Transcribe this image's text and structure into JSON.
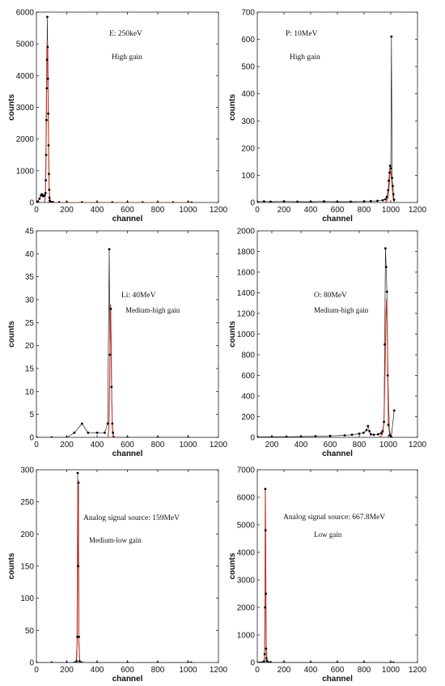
{
  "chart_data": [
    {
      "type": "scatter",
      "xlabel": "channel",
      "ylabel": "counts",
      "xlim": [
        0,
        1200
      ],
      "ylim": [
        0,
        6000
      ],
      "xticks": [
        0,
        200,
        400,
        600,
        800,
        1000,
        1200
      ],
      "yticks": [
        0,
        1000,
        2000,
        3000,
        4000,
        5000,
        6000
      ],
      "annotations": [
        "E: 250keV",
        "High gain"
      ],
      "fit_color": "#c0392b",
      "series": [
        {
          "kind": "points",
          "x": [
            0,
            10,
            20,
            30,
            35,
            40,
            45,
            50,
            55,
            60,
            62,
            64,
            66,
            68,
            70,
            72,
            74,
            76,
            78,
            80,
            82,
            84,
            86,
            88,
            90,
            95,
            100,
            110,
            150,
            200,
            300,
            400,
            500,
            600,
            700,
            800,
            900,
            1000,
            1023
          ],
          "y": [
            0,
            30,
            120,
            220,
            260,
            240,
            200,
            210,
            230,
            300,
            700,
            1500,
            2600,
            3600,
            4500,
            5850,
            4900,
            3900,
            2800,
            1800,
            900,
            400,
            150,
            60,
            30,
            15,
            10,
            8,
            5,
            4,
            4,
            3,
            3,
            3,
            2,
            2,
            2,
            2,
            1
          ]
        },
        {
          "kind": "fit",
          "x": [
            50,
            56,
            60,
            63,
            66,
            69,
            72,
            75,
            78,
            81,
            84,
            88,
            94,
            110,
            1020
          ],
          "y": [
            0,
            50,
            400,
            1500,
            3300,
            4800,
            5100,
            4700,
            3200,
            1500,
            500,
            120,
            10,
            0,
            0
          ]
        }
      ]
    },
    {
      "type": "scatter",
      "xlabel": "channel",
      "ylabel": "counts",
      "xlim": [
        0,
        1200
      ],
      "ylim": [
        0,
        700
      ],
      "xticks": [
        0,
        200,
        400,
        600,
        800,
        1000,
        1200
      ],
      "yticks": [
        0,
        100,
        200,
        300,
        400,
        500,
        600,
        700
      ],
      "annotations": [
        "P: 10MeV",
        "High gain"
      ],
      "fit_color": "#c0392b",
      "series": [
        {
          "kind": "points",
          "x": [
            0,
            50,
            100,
            200,
            300,
            400,
            500,
            600,
            700,
            800,
            850,
            900,
            940,
            960,
            970,
            980,
            985,
            990,
            995,
            1000,
            1005,
            1010,
            1015,
            1020,
            1025
          ],
          "y": [
            3,
            4,
            3,
            4,
            3,
            3,
            4,
            3,
            3,
            4,
            5,
            6,
            8,
            12,
            20,
            45,
            80,
            110,
            135,
            125,
            610,
            90,
            60,
            30,
            10
          ]
        },
        {
          "kind": "fit",
          "x": [
            960,
            975,
            985,
            992,
            998,
            1003,
            1008,
            1014,
            1020,
            1030
          ],
          "y": [
            0,
            10,
            45,
            95,
            120,
            110,
            75,
            35,
            8,
            0
          ]
        }
      ]
    },
    {
      "type": "scatter",
      "xlabel": "channel",
      "ylabel": "counts",
      "xlim": [
        0,
        1200
      ],
      "ylim": [
        0,
        45
      ],
      "xticks": [
        0,
        200,
        400,
        600,
        800,
        1000,
        1200
      ],
      "yticks": [
        0,
        5,
        10,
        15,
        20,
        25,
        30,
        35,
        40,
        45
      ],
      "annotations": [
        "Li: 40MeV",
        "Medium-high gain"
      ],
      "fit_color": "#c0392b",
      "series": [
        {
          "kind": "points",
          "x": [
            0,
            100,
            200,
            250,
            300,
            340,
            400,
            450,
            470,
            480,
            485,
            490,
            495,
            500,
            505,
            510,
            600,
            800,
            1000
          ],
          "y": [
            0,
            0,
            0,
            1,
            3,
            1,
            1,
            1,
            3,
            41,
            18,
            28,
            11,
            3,
            1,
            0,
            0,
            0,
            0
          ]
        },
        {
          "kind": "fit",
          "x": [
            472,
            478,
            482,
            486,
            489,
            492,
            496,
            500,
            506
          ],
          "y": [
            0,
            2,
            10,
            22,
            29,
            22,
            10,
            2,
            0
          ]
        }
      ]
    },
    {
      "type": "scatter",
      "xlabel": "channel",
      "ylabel": "counts",
      "xlim": [
        100,
        1200
      ],
      "ylim": [
        0,
        2000
      ],
      "xticks": [
        200,
        400,
        600,
        800,
        1000,
        1200
      ],
      "yticks": [
        0,
        200,
        400,
        600,
        800,
        1000,
        1200,
        1400,
        1600,
        1800,
        2000
      ],
      "annotations": [
        "O: 80MeV",
        "Medium-high gain"
      ],
      "fit_color": "#c0392b",
      "series": [
        {
          "kind": "points",
          "x": [
            100,
            200,
            300,
            400,
            500,
            600,
            700,
            750,
            800,
            830,
            850,
            860,
            870,
            880,
            900,
            930,
            950,
            960,
            970,
            975,
            980,
            985,
            990,
            995,
            1000,
            1010,
            1020,
            1040
          ],
          "y": [
            5,
            5,
            6,
            8,
            10,
            14,
            20,
            25,
            35,
            45,
            70,
            110,
            60,
            30,
            25,
            30,
            40,
            60,
            150,
            900,
            1830,
            1650,
            1410,
            600,
            120,
            20,
            5,
            260
          ]
        },
        {
          "kind": "fit",
          "x": [
            940,
            960,
            970,
            978,
            984,
            988,
            992,
            998,
            1006,
            1020
          ],
          "y": [
            0,
            30,
            150,
            700,
            1200,
            1340,
            1100,
            500,
            80,
            0
          ]
        }
      ]
    },
    {
      "type": "scatter",
      "xlabel": "channel",
      "ylabel": "counts",
      "xlim": [
        0,
        1200
      ],
      "ylim": [
        0,
        300
      ],
      "xticks": [
        0,
        200,
        400,
        600,
        800,
        1000,
        1200
      ],
      "yticks": [
        0,
        50,
        100,
        150,
        200,
        250,
        300
      ],
      "annotations": [
        "Analog signal source: 159MeV",
        "Medium-low gain"
      ],
      "fit_color": "#c0392b",
      "series": [
        {
          "kind": "points",
          "x": [
            0,
            100,
            200,
            250,
            265,
            270,
            272,
            275,
            278,
            280,
            285,
            300,
            400,
            600,
            800,
            1000,
            1020
          ],
          "y": [
            0,
            0,
            0,
            0,
            2,
            40,
            295,
            150,
            280,
            40,
            2,
            0,
            0,
            0,
            0,
            0,
            0
          ]
        },
        {
          "kind": "fit",
          "x": [
            262,
            268,
            271,
            274,
            277,
            280,
            286
          ],
          "y": [
            0,
            30,
            200,
            285,
            200,
            30,
            0
          ]
        }
      ]
    },
    {
      "type": "scatter",
      "xlabel": "channel",
      "ylabel": "counts",
      "xlim": [
        0,
        1200
      ],
      "ylim": [
        0,
        7000
      ],
      "xticks": [
        0,
        200,
        400,
        600,
        800,
        1000,
        1200
      ],
      "yticks": [
        0,
        1000,
        2000,
        3000,
        4000,
        5000,
        6000,
        7000
      ],
      "annotations": [
        "Analog signal source: 667.8MeV",
        "Low gain"
      ],
      "fit_color": "#c0392b",
      "series": [
        {
          "kind": "points",
          "x": [
            0,
            20,
            40,
            50,
            55,
            58,
            60,
            62,
            64,
            66,
            68,
            72,
            80,
            100,
            200,
            400,
            600,
            800,
            1000,
            1020
          ],
          "y": [
            0,
            0,
            10,
            40,
            300,
            2000,
            6300,
            4800,
            2500,
            500,
            150,
            60,
            20,
            10,
            5,
            3,
            2,
            2,
            1,
            0
          ]
        },
        {
          "kind": "fit",
          "x": [
            50,
            55,
            58,
            60,
            62,
            64,
            67,
            72,
            80
          ],
          "y": [
            0,
            300,
            2500,
            6350,
            5200,
            2600,
            600,
            60,
            0
          ]
        }
      ]
    }
  ]
}
